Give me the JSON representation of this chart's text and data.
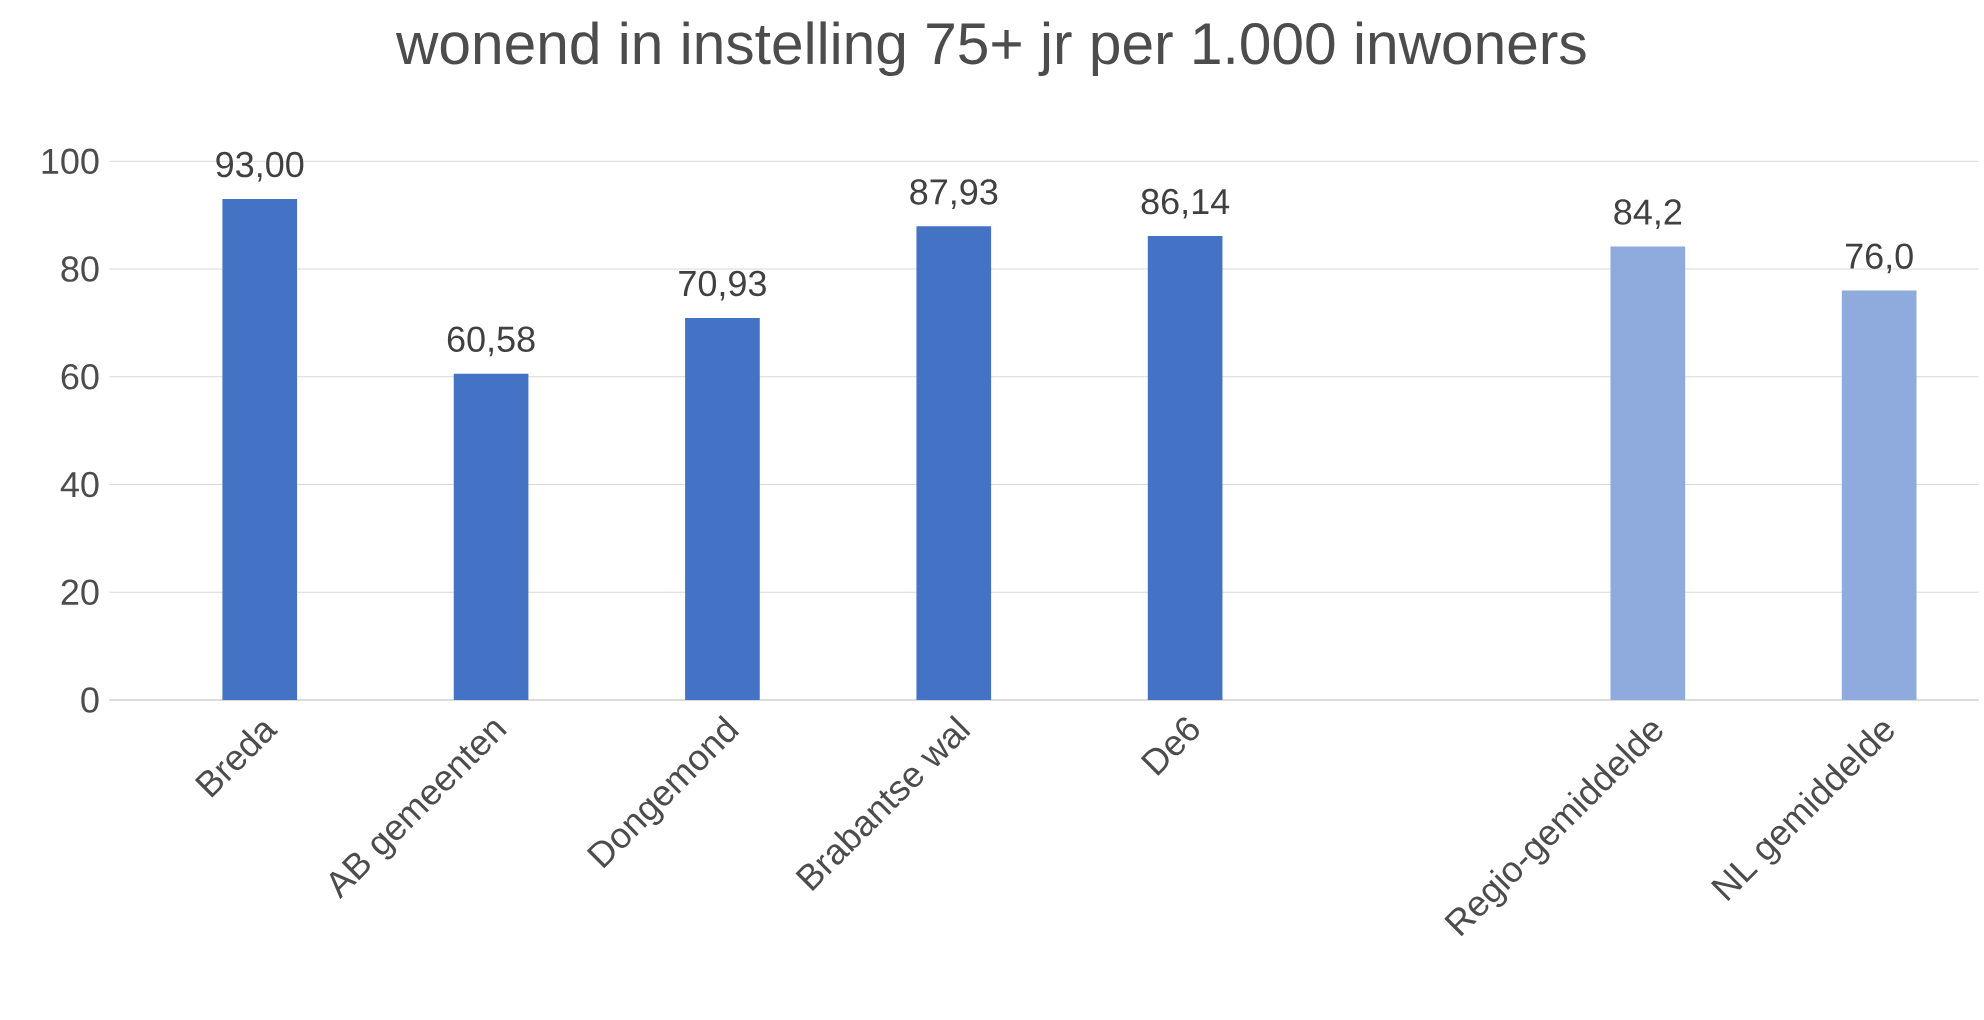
{
  "chart_data": {
    "type": "bar",
    "title": "wonend in instelling 75+ jr per 1.000 inwoners",
    "categories": [
      "Breda",
      "AB gemeenten",
      "Dongemond",
      "Brabantse wal",
      "De6",
      null,
      "Regio-gemiddelde",
      "NL gemiddelde"
    ],
    "values": [
      93.0,
      60.58,
      70.93,
      87.93,
      86.14,
      null,
      84.2,
      76.0
    ],
    "value_labels": [
      "93,00",
      "60,58",
      "70,93",
      "87,93",
      "86,14",
      null,
      "84,2",
      "76,0"
    ],
    "colors": [
      "#4472c4",
      "#4472c4",
      "#4472c4",
      "#4472c4",
      "#4472c4",
      "#4472c4",
      "#8faadc",
      "#8faadc"
    ],
    "ylim": [
      0,
      100
    ],
    "yticks": [
      0,
      20,
      40,
      60,
      80,
      100
    ],
    "grid": "y"
  }
}
